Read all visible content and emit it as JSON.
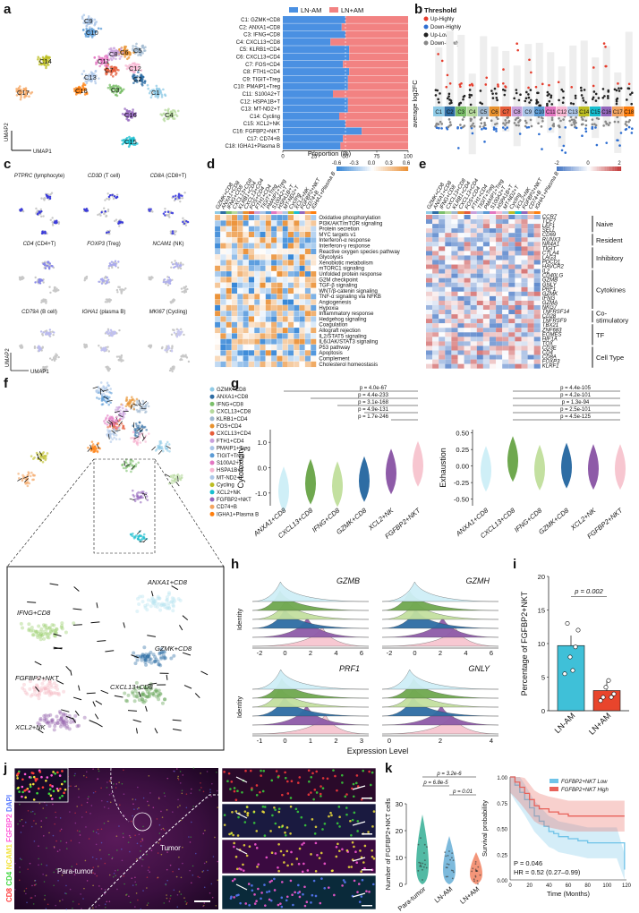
{
  "panels": {
    "a": "a",
    "b": "b",
    "c": "c",
    "d": "d",
    "e": "e",
    "f": "f",
    "g": "g",
    "h": "h",
    "i": "i",
    "j": "j",
    "k": "k"
  },
  "colors": {
    "ln_neg": "#4a90e2",
    "ln_pos": "#f28282",
    "clusters": [
      "#8ecae6",
      "#2e6da4",
      "#7bbf6a",
      "#b5d99c",
      "#9fb8d0",
      "#e8912d",
      "#e65c3a",
      "#c9a0dc",
      "#a9c5e8",
      "#5b9bd5",
      "#e377c2",
      "#f7b6d2",
      "#aec7e8",
      "#bcbd22",
      "#17becf",
      "#9467bd",
      "#f4a460",
      "#ff7f0e"
    ]
  },
  "panel_a": {
    "umap_labels": [
      "C1",
      "C2",
      "C3",
      "C4",
      "C5",
      "C6",
      "C7",
      "C8",
      "C9",
      "C10",
      "C11",
      "C12",
      "C13",
      "C14",
      "C15",
      "C16",
      "C17",
      "C18"
    ],
    "axis_y": "UMAP2",
    "axis_x": "UMAP1",
    "legend": [
      "LN-AM",
      "LN+AM"
    ],
    "xlabel": "Proportion (%)",
    "ticks": [
      "0",
      "25",
      "50",
      "75",
      "100"
    ]
  },
  "chart_data": [
    {
      "type": "bar",
      "title": "",
      "xlabel": "Proportion (%)",
      "categories": [
        "C1: GZMK+CD8",
        "C2: ANXA1+CD8",
        "C3: IFNG+CD8",
        "C4: CXCL13+CD8",
        "C5: KLRB1+CD4",
        "C6: CXCL13+CD4",
        "C7: FOS+CD4",
        "C8: FTH1+CD4",
        "C9: TIGIT+Treg",
        "C10: PMAIP1+Treg",
        "C11: S100A2+T",
        "C12: HSPA1B+T",
        "C13: MT-ND2+T",
        "C14: Cycling",
        "C15: XCL2+NK",
        "C16: FGFBP2+NKT",
        "C17: CD74+B",
        "C18: IGHA1+Plasma B"
      ],
      "series": [
        {
          "name": "LN-AM",
          "values": [
            50,
            47,
            50,
            38,
            53,
            53,
            48,
            53,
            52,
            52,
            40,
            52,
            52,
            45,
            50,
            63,
            48,
            46
          ]
        },
        {
          "name": "LN+AM",
          "values": [
            50,
            53,
            50,
            62,
            47,
            47,
            52,
            47,
            48,
            48,
            60,
            48,
            48,
            55,
            50,
            37,
            52,
            54
          ]
        }
      ],
      "xlim": [
        0,
        100
      ]
    },
    {
      "type": "scatter",
      "title": "Threshold",
      "ylabel": "average log2FC",
      "legend": [
        "Up-Highly",
        "Down-Highly",
        "Up-Lowly",
        "Down-Lowly"
      ],
      "categories": [
        "C1",
        "C2",
        "C3",
        "C4",
        "C5",
        "C6",
        "C7",
        "C8",
        "C9",
        "C10",
        "C11",
        "C12",
        "C13",
        "C14",
        "C15",
        "C16",
        "C17",
        "C18"
      ]
    },
    {
      "type": "violin",
      "title": "Cytotoxicity",
      "ylabel": "Cytotoxicity",
      "categories": [
        "ANXA1+CD8",
        "CXCL13+CD8",
        "IFNG+CD8",
        "GZMK+CD8",
        "XCL2+NK",
        "FGFBP2+NKT"
      ],
      "medians": [
        -1.0,
        -0.7,
        -0.8,
        -0.6,
        -0.3,
        0.0
      ],
      "yticks": [
        "-1.0",
        "0.0",
        "1.0"
      ],
      "pvalues": [
        "p = 4.0e-67",
        "p = 4.4e-233",
        "p = 3.1e-168",
        "p = 4.9e-131",
        "p = 1.7e-246"
      ]
    },
    {
      "type": "violin",
      "title": "Exhaustion",
      "ylabel": "Exhaustion",
      "categories": [
        "ANXA1+CD8",
        "CXCL13+CD8",
        "IFNG+CD8",
        "GZMK+CD8",
        "XCL2+NK",
        "FGFBP2+NKT"
      ],
      "medians": [
        -0.1,
        0.05,
        -0.08,
        -0.05,
        -0.07,
        -0.07
      ],
      "yticks": [
        "-0.50",
        "-0.25",
        "0.00",
        "0.25",
        "0.50"
      ],
      "pvalues": [
        "p = 4.4e-105",
        "p = 4.2e-101",
        "p = 1.3e-94",
        "p = 2.5e-101",
        "p = 4.5e-125"
      ]
    },
    {
      "type": "bar",
      "title": "Percentage of FGFBP2+NKT",
      "ylabel": "Percentage of FGFBP2+NKT",
      "categories": [
        "LN-AM",
        "LN+AM"
      ],
      "values": [
        9.7,
        3.0
      ],
      "ylim": [
        0,
        20
      ],
      "yticks": [
        "0",
        "5",
        "10",
        "15",
        "20"
      ],
      "pvalue": "p = 0.002"
    },
    {
      "type": "line",
      "title": "Survival",
      "ylabel": "Survival probability",
      "xlabel": "Time (Months)",
      "xticks": [
        "0",
        "20",
        "40",
        "60",
        "80",
        "100",
        "120"
      ],
      "yticks": [
        "0.00",
        "0.25",
        "0.50",
        "0.75",
        "1.00"
      ],
      "series": [
        {
          "name": "FGFBP2+NKT Low",
          "x": [
            0,
            5,
            10,
            15,
            20,
            25,
            30,
            35,
            40,
            45,
            50,
            60,
            70,
            80,
            90,
            100,
            110,
            118
          ],
          "y": [
            1.0,
            0.92,
            0.85,
            0.78,
            0.7,
            0.62,
            0.57,
            0.52,
            0.47,
            0.45,
            0.42,
            0.4,
            0.38,
            0.36,
            0.36,
            0.36,
            0.36,
            0.1
          ]
        },
        {
          "name": "FGFBP2+NKT High",
          "x": [
            0,
            5,
            10,
            15,
            20,
            25,
            30,
            40,
            50,
            60,
            70,
            80,
            90,
            100,
            110,
            118
          ],
          "y": [
            1.0,
            0.95,
            0.9,
            0.84,
            0.78,
            0.72,
            0.69,
            0.66,
            0.64,
            0.62,
            0.62,
            0.62,
            0.62,
            0.62,
            0.62,
            0.62
          ]
        }
      ],
      "stats": {
        "p": "P = 0.046",
        "hr": "HR = 0.52 (0.27–0.99)"
      }
    }
  ],
  "panel_c": {
    "genes": [
      "PTPRC (lymphocyte)",
      "CD3D (T cell)",
      "CD8A (CD8+T)",
      "CD4 (CD4+T)",
      "FOXP3 (Treg)",
      "NCAM1 (NK)",
      "CD79A (B cell)",
      "IGHA1 (plasma B)",
      "MKI67 (Cycling)"
    ],
    "axis_y": "UMAP2",
    "axis_x": "UMAP1"
  },
  "panel_d": {
    "columns": [
      "GZMK+CD8",
      "ANXA1+CD8",
      "IFNG+CD8",
      "CXCL13+CD8",
      "KLRB1+CD4",
      "CXCL13+CD4",
      "FOS+CD4",
      "FTH1+CD4",
      "TIGIT+Treg",
      "PMAIP1+Treg",
      "S100A2+T",
      "HSPA1B+T",
      "MT-ND2+T",
      "Cycling",
      "XCL2+NK",
      "FGFBP2+NKT",
      "CD74+B",
      "IGHA1+Plasma B"
    ],
    "rows": [
      "Oxidative phosphorylation",
      "PI3K/AKT/mTOR signaling",
      "Protein secretion",
      "MYC targets v1",
      "Interferon-α response",
      "Interferon-γ response",
      "Reactive oxygen species pathway",
      "Glycolysis",
      "Xenobiotic metabolism",
      "mTORC1 signaling",
      "Unfolded protein response",
      "G2M checkpoint",
      "TGF-β signaling",
      "WNT/β-catenin signaling",
      "TNF-α signaling via NFKB",
      "Angiogenesis",
      "Hypoxia",
      "Inflammatory response",
      "Hedgehog signaling",
      "Coagulation",
      "Allograft rejection",
      "IL2/STAT5 signaling",
      "IL6/JAK/STAT3 signaling",
      "P53 pathway",
      "Apoptosis",
      "Complement",
      "Cholesterol homeostasis"
    ],
    "scale": [
      "-0.6",
      "-0.3",
      "0.0",
      "0.3",
      "0.6"
    ]
  },
  "panel_e": {
    "genes": [
      "CCR7",
      "TCF7",
      "LEF1",
      "SELL",
      "CD69",
      "RUNX3",
      "NR4A1",
      "TIGIT",
      "CTLA4",
      "LAG3",
      "PDCD1",
      "HAVCR2",
      "IL2",
      "CD40LG",
      "GZMB",
      "GNLY",
      "PRF1",
      "GZMK",
      "IFNG",
      "GZMA",
      "NKG7",
      "TNFRSF14",
      "CD28",
      "TNFRSF9",
      "TBX21",
      "ZNF683",
      "EOMES",
      "HIF1A",
      "TOX",
      "CD3E",
      "CD4",
      "CD8A",
      "FOXP3",
      "KLRF1"
    ],
    "groups": [
      "Naive",
      "Resident",
      "Inhibitory",
      "Cytokines",
      "Co-stimulatory",
      "TF",
      "Cell Type"
    ],
    "scale": [
      "-2",
      "0",
      "2"
    ]
  },
  "panel_f": {
    "legend": [
      "GZMK+CD8",
      "ANXA1+CD8",
      "IFNG+CD8",
      "CXCL13+CD8",
      "KLRB1+CD4",
      "FOS+CD4",
      "CXCL13+CD4",
      "FTH1+CD4",
      "PMAIP1+Treg",
      "TIGIT+Treg",
      "S100A2+T",
      "HSPA1B+T",
      "MT-ND2+T",
      "Cycling",
      "XCL2+NK",
      "FGFBP2+NKT",
      "CD74+B",
      "IGHA1+Plasma B"
    ],
    "zoom_labels": [
      "ANXA1+CD8",
      "IFNG+CD8",
      "GZMK+CD8",
      "FGFBP2+NKT",
      "CXCL13+CD8",
      "XCL2+NK"
    ]
  },
  "panel_h": {
    "genes": [
      "GZMB",
      "GZMH",
      "PRF1",
      "GNLY"
    ],
    "ylabel": "Identity",
    "xlabel": "Expression Level",
    "ticks_top": [
      "-2",
      "0",
      "2",
      "4",
      "6"
    ],
    "ticks_prf": [
      "-1",
      "0",
      "1",
      "2",
      "3"
    ],
    "ticks_gnly": [
      "0",
      "2",
      "4"
    ]
  },
  "panel_j": {
    "channels": [
      "CD8",
      "CD4",
      "NCAM1",
      "FGFBP2",
      "DAPI"
    ],
    "labels": [
      "Para-tumor",
      "Tumor"
    ]
  },
  "panel_k": {
    "ylabel": "Number of FGFBP2+NKT cells",
    "categories": [
      "Para-tumor",
      "LN-AM",
      "LN+AM"
    ],
    "pvalues": [
      "p = 3.2e-6",
      "p = 6.8e-5",
      "p = 0.01"
    ],
    "yticks": [
      "0",
      "10",
      "20",
      "30"
    ],
    "legend": [
      "FGFBP2+NKT Low",
      "FGFBP2+NKT High"
    ]
  }
}
